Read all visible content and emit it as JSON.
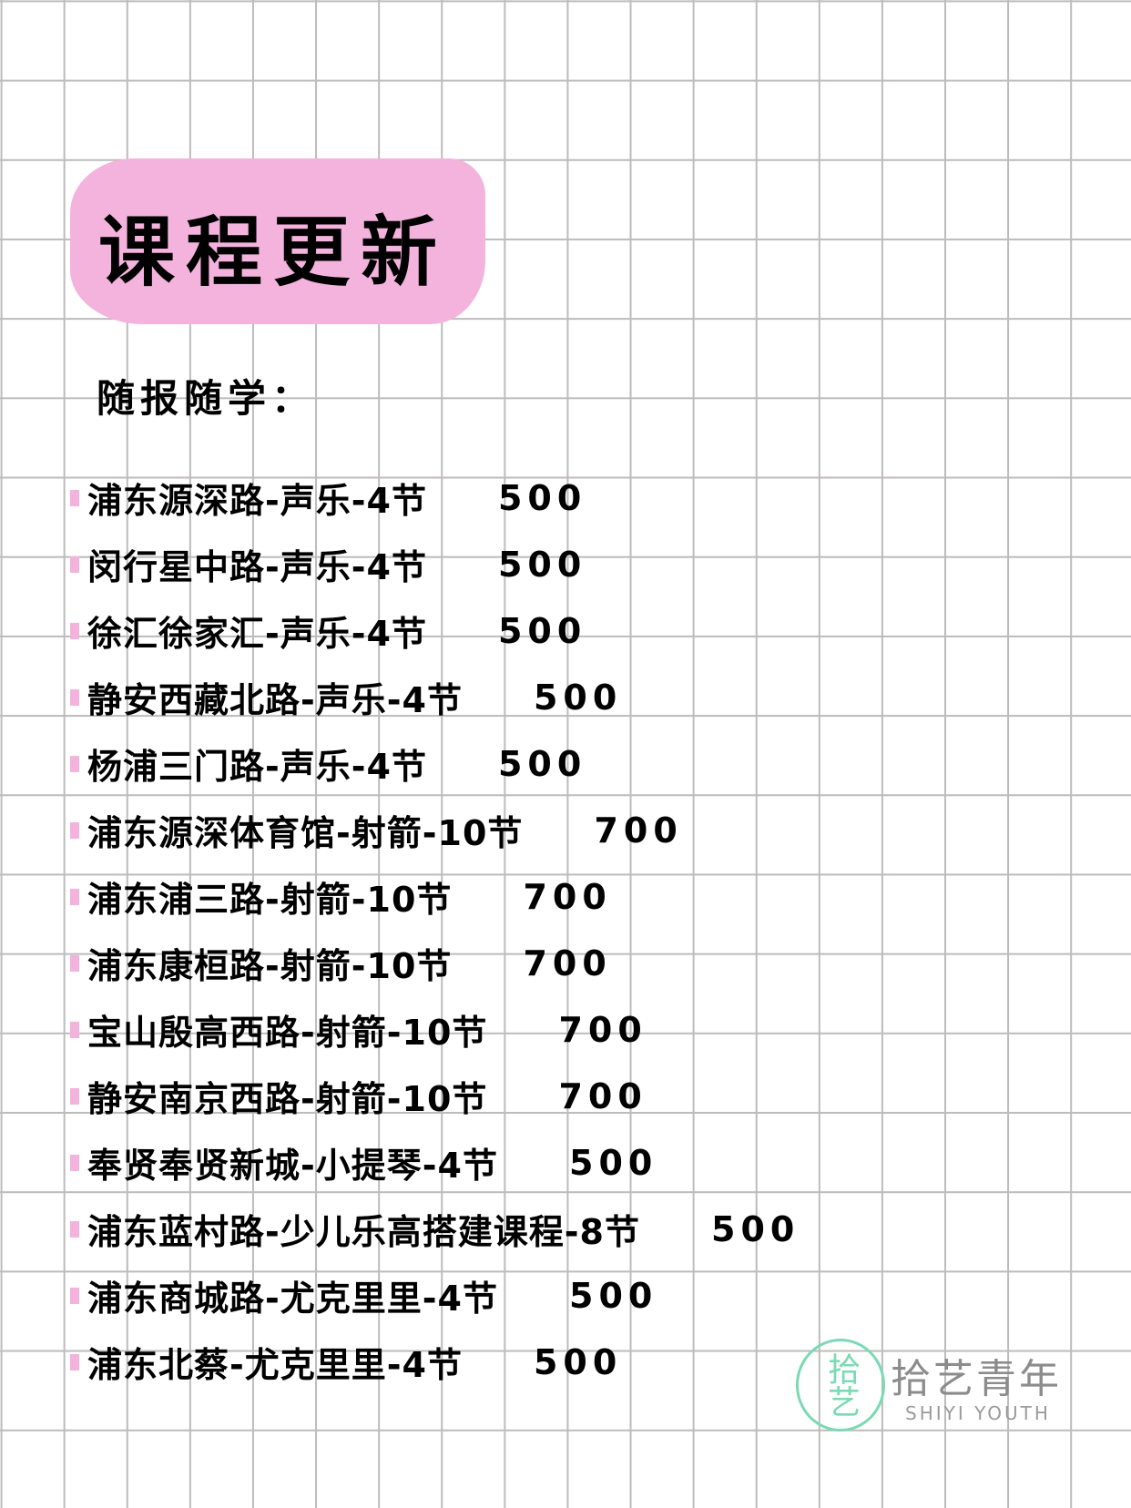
{
  "title": "课程更新",
  "subtitle": "随报随学：",
  "courses": [
    {
      "label": "浦东源深路-声乐-4节",
      "price": "500"
    },
    {
      "label": "闵行星中路-声乐-4节",
      "price": "500"
    },
    {
      "label": "徐汇徐家汇-声乐-4节",
      "price": "500"
    },
    {
      "label": "静安西藏北路-声乐-4节",
      "price": "500"
    },
    {
      "label": "杨浦三门路-声乐-4节",
      "price": "500"
    },
    {
      "label": "浦东源深体育馆-射箭-10节",
      "price": "700"
    },
    {
      "label": "浦东浦三路-射箭-10节",
      "price": "700"
    },
    {
      "label": "浦东康桓路-射箭-10节",
      "price": "700"
    },
    {
      "label": "宝山殷高西路-射箭-10节",
      "price": "700"
    },
    {
      "label": "静安南京西路-射箭-10节",
      "price": "700"
    },
    {
      "label": "奉贤奉贤新城-小提琴-4节",
      "price": "500"
    },
    {
      "label": "浦东蓝村路-少儿乐高搭建课程-8节",
      "price": "500"
    },
    {
      "label": "浦东商城路-尤克里里-4节",
      "price": "500"
    },
    {
      "label": "浦东北蔡-尤克里里-4节",
      "price": "500"
    }
  ],
  "logo": {
    "mark": "拾艺",
    "name": "拾艺青年",
    "english": "SHIYI YOUTH"
  },
  "colors": {
    "accent_pink": "#f3b3dc",
    "logo_green": "#7bd9b5",
    "grid": "#bdbbbb"
  }
}
